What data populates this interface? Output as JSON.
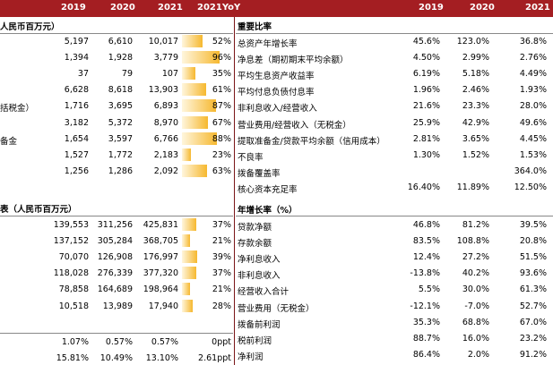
{
  "header": {
    "left_cols": [
      "2019",
      "2020",
      "2021",
      "2021YoY"
    ],
    "right_cols": [
      "2019",
      "2020",
      "2021"
    ]
  },
  "left": {
    "section1_title": "人民币百万元）",
    "rows1": [
      {
        "label": "",
        "v2019": "5,197",
        "v2020": "6,610",
        "v2021": "10,017",
        "yoy": "52%",
        "bar": 0.52
      },
      {
        "label": "",
        "v2019": "1,394",
        "v2020": "1,928",
        "v2021": "3,779",
        "yoy": "96%",
        "bar": 0.96
      },
      {
        "label": "",
        "v2019": "37",
        "v2020": "79",
        "v2021": "107",
        "yoy": "35%",
        "bar": 0.35
      },
      {
        "label": "",
        "v2019": "6,628",
        "v2020": "8,618",
        "v2021": "13,903",
        "yoy": "61%",
        "bar": 0.61
      },
      {
        "label": "括税金）",
        "v2019": "1,716",
        "v2020": "3,695",
        "v2021": "6,893",
        "yoy": "87%",
        "bar": 0.87
      },
      {
        "label": "",
        "v2019": "3,182",
        "v2020": "5,372",
        "v2021": "8,970",
        "yoy": "67%",
        "bar": 0.67
      },
      {
        "label": "备金",
        "v2019": "1,654",
        "v2020": "3,597",
        "v2021": "6,766",
        "yoy": "88%",
        "bar": 0.88
      },
      {
        "label": "",
        "v2019": "1,527",
        "v2020": "1,772",
        "v2021": "2,183",
        "yoy": "23%",
        "bar": 0.23
      },
      {
        "label": "",
        "v2019": "1,256",
        "v2020": "1,286",
        "v2021": "2,092",
        "yoy": "63%",
        "bar": 0.63
      }
    ],
    "section2_title": "表（人民币百万元）",
    "rows2": [
      {
        "v2019": "139,553",
        "v2020": "311,256",
        "v2021": "425,831",
        "yoy": "37%",
        "bar": 0.37
      },
      {
        "v2019": "137,152",
        "v2020": "305,284",
        "v2021": "368,705",
        "yoy": "21%",
        "bar": 0.21
      },
      {
        "v2019": "70,070",
        "v2020": "126,908",
        "v2021": "176,997",
        "yoy": "39%",
        "bar": 0.39
      },
      {
        "v2019": "118,028",
        "v2020": "276,339",
        "v2021": "377,320",
        "yoy": "37%",
        "bar": 0.37
      },
      {
        "v2019": "78,858",
        "v2020": "164,689",
        "v2021": "198,964",
        "yoy": "21%",
        "bar": 0.21
      },
      {
        "v2019": "10,518",
        "v2020": "13,989",
        "v2021": "17,940",
        "yoy": "28%",
        "bar": 0.28
      }
    ],
    "rows3": [
      {
        "v2019": "1.07%",
        "v2020": "0.57%",
        "v2021": "0.57%",
        "yoy": "0ppt"
      },
      {
        "v2019": "15.81%",
        "v2020": "10.49%",
        "v2021": "13.10%",
        "yoy": "2.61ppt"
      }
    ]
  },
  "right": {
    "section1_title": "重要比率",
    "rows1": [
      {
        "label": "总资产年增长率",
        "v2019": "45.6%",
        "v2020": "123.0%",
        "v2021": "36.8%"
      },
      {
        "label": "净息差（期初期末平均余额）",
        "v2019": "4.50%",
        "v2020": "2.99%",
        "v2021": "2.76%"
      },
      {
        "label": "平均生息资产收益率",
        "v2019": "6.19%",
        "v2020": "5.18%",
        "v2021": "4.49%"
      },
      {
        "label": "平均付息负债付息率",
        "v2019": "1.96%",
        "v2020": "2.46%",
        "v2021": "1.93%"
      },
      {
        "label": "非利息收入/经营收入",
        "v2019": "21.6%",
        "v2020": "23.3%",
        "v2021": "28.0%"
      },
      {
        "label": "营业费用/经营收入（无税金）",
        "v2019": "25.9%",
        "v2020": "42.9%",
        "v2021": "49.6%"
      },
      {
        "label": "提取准备金/贷款平均余额（信用成本）",
        "v2019": "2.81%",
        "v2020": "3.65%",
        "v2021": "4.45%"
      },
      {
        "label": "不良率",
        "v2019": "1.30%",
        "v2020": "1.52%",
        "v2021": "1.53%"
      },
      {
        "label": "拨备覆盖率",
        "v2019": "",
        "v2020": "",
        "v2021": "364.0%"
      },
      {
        "label": "核心资本充足率",
        "v2019": "16.40%",
        "v2020": "11.89%",
        "v2021": "12.50%"
      }
    ],
    "section2_title": "年增长率（%）",
    "rows2": [
      {
        "label": "贷款净额",
        "v2019": "46.8%",
        "v2020": "81.2%",
        "v2021": "39.5%"
      },
      {
        "label": "存款余额",
        "v2019": "83.5%",
        "v2020": "108.8%",
        "v2021": "20.8%"
      },
      {
        "label": "净利息收入",
        "v2019": "12.4%",
        "v2020": "27.2%",
        "v2021": "51.5%"
      },
      {
        "label": "非利息收入",
        "v2019": "-13.8%",
        "v2020": "40.2%",
        "v2021": "93.6%"
      },
      {
        "label": "经营收入合计",
        "v2019": "5.5%",
        "v2020": "30.0%",
        "v2021": "61.3%"
      },
      {
        "label": "营业费用（无税金）",
        "v2019": "-12.1%",
        "v2020": "-7.0%",
        "v2021": "52.7%"
      },
      {
        "label": "拨备前利润",
        "v2019": "35.3%",
        "v2020": "68.8%",
        "v2021": "67.0%"
      },
      {
        "label": "税前利润",
        "v2019": "88.7%",
        "v2020": "16.0%",
        "v2021": "23.2%"
      },
      {
        "label": "净利润",
        "v2019": "86.4%",
        "v2020": "2.0%",
        "v2021": "91.2%"
      }
    ]
  }
}
